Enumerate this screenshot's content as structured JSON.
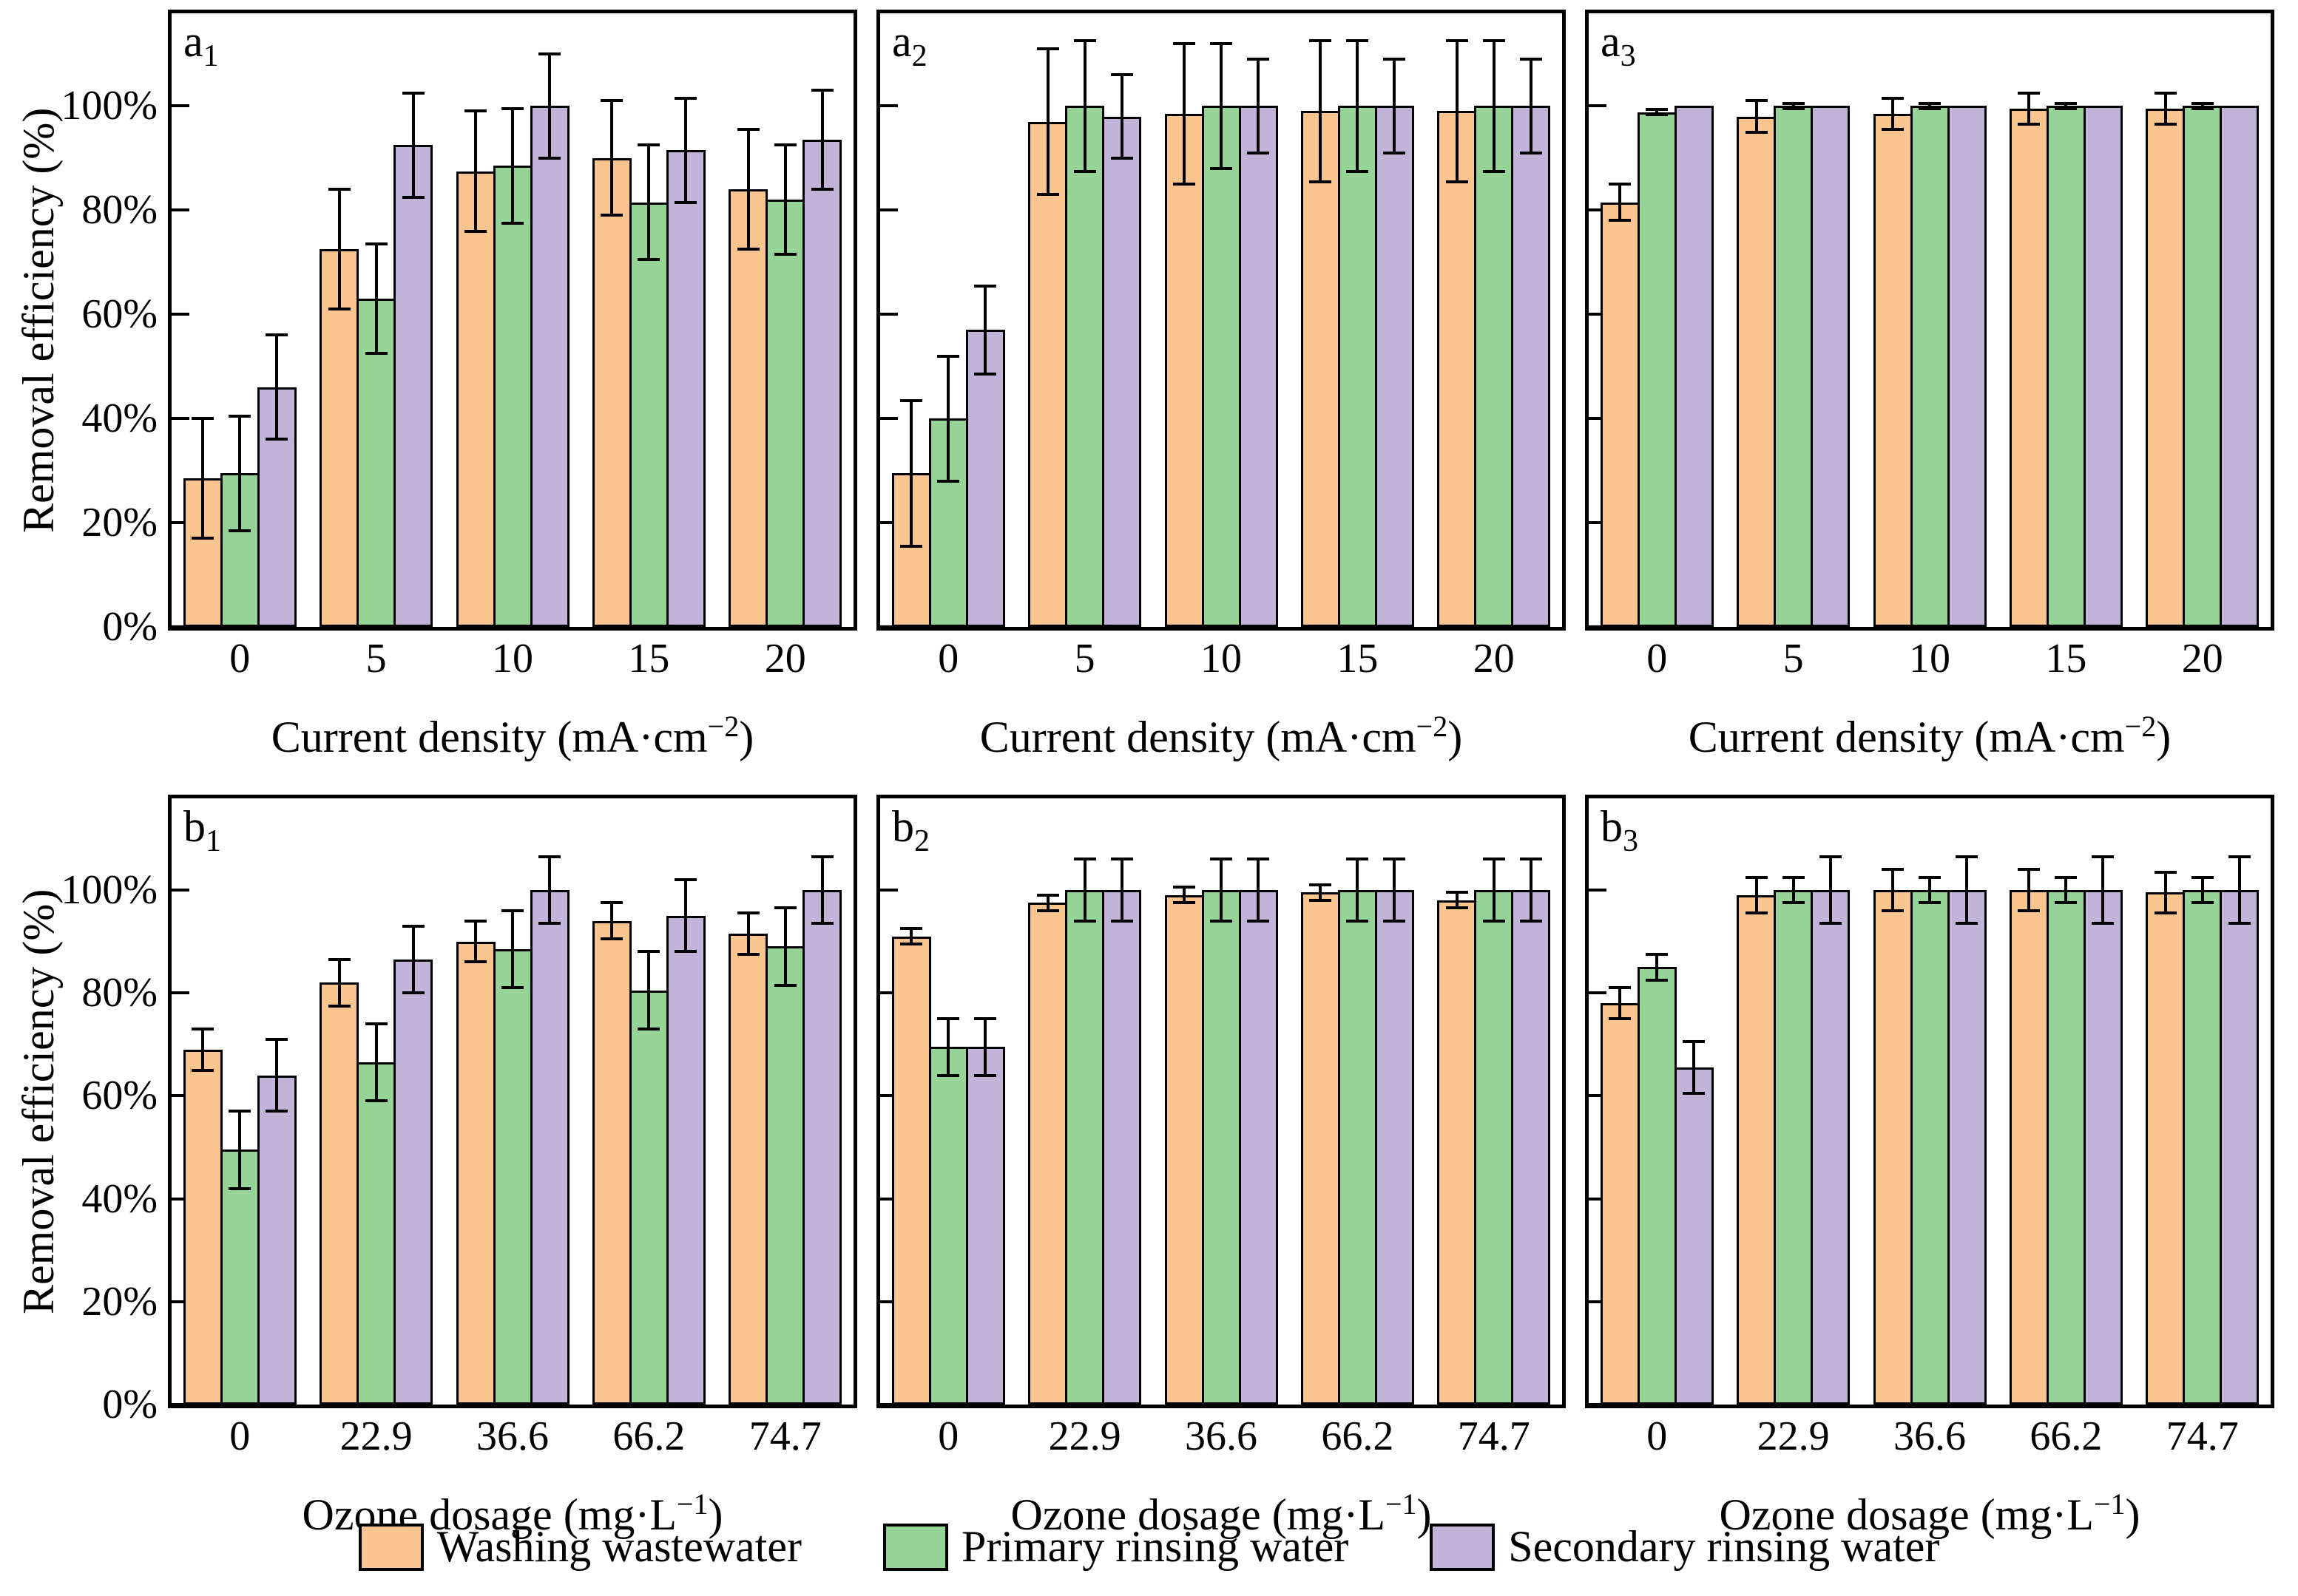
{
  "figure": {
    "ylabel": "Removal efficiency (%)",
    "y_axis": {
      "tick_labels": [
        "0%",
        "20%",
        "40%",
        "60%",
        "80%",
        "100%"
      ],
      "tick_values": [
        0,
        20,
        40,
        60,
        80,
        100
      ],
      "max_value": 117.8
    }
  },
  "colors": {
    "washing": "#FAC48E",
    "primary": "#96D396",
    "secondary": "#C2B4D8",
    "axis": "#000000"
  },
  "legend": {
    "items": [
      {
        "key": "washing",
        "label": "Washing wastewater",
        "color": "#FAC48E"
      },
      {
        "key": "primary",
        "label": "Primary rinsing water",
        "color": "#96D396"
      },
      {
        "key": "secondary",
        "label": "Secondary rinsing water",
        "color": "#C2B4D8"
      }
    ]
  },
  "chart_data": {
    "type": "bar",
    "grid": "off",
    "legend_position": "bottom",
    "ylim": [
      0,
      117.8
    ],
    "rows": [
      {
        "xlabel": {
          "pre": "Current density (mA·cm",
          "sup": "−2",
          "post": ")"
        },
        "categories": [
          "0",
          "5",
          "10",
          "15",
          "20"
        ],
        "panels": [
          {
            "label": "a",
            "sub": "1",
            "series": [
              {
                "name": "Washing wastewater",
                "key": "washing",
                "values": [
                  28.5,
                  72.5,
                  87.5,
                  90,
                  84
                ],
                "errors": [
                  11.5,
                  11.5,
                  11.5,
                  11,
                  11.5
                ]
              },
              {
                "name": "Primary rinsing water",
                "key": "primary",
                "values": [
                  29.5,
                  63,
                  88.5,
                  81.5,
                  82
                ],
                "errors": [
                  11,
                  10.5,
                  11,
                  11,
                  10.5
                ]
              },
              {
                "name": "Secondary rinsing water",
                "key": "secondary",
                "values": [
                  46,
                  92.5,
                  100,
                  91.5,
                  93.5
                ],
                "errors": [
                  10,
                  10,
                  10,
                  10,
                  9.5
                ]
              }
            ]
          },
          {
            "label": "a",
            "sub": "2",
            "series": [
              {
                "name": "Washing wastewater",
                "key": "washing",
                "values": [
                  29.5,
                  97,
                  98.5,
                  99,
                  99
                ],
                "errors": [
                  14,
                  14,
                  13.5,
                  13.5,
                  13.5
                ]
              },
              {
                "name": "Primary rinsing water",
                "key": "primary",
                "values": [
                  40,
                  100,
                  100,
                  100,
                  100
                ],
                "errors": [
                  12,
                  12.5,
                  12,
                  12.5,
                  12.5
                ]
              },
              {
                "name": "Secondary rinsing water",
                "key": "secondary",
                "values": [
                  57,
                  98,
                  100,
                  100,
                  100
                ],
                "errors": [
                  8.5,
                  8,
                  9,
                  9,
                  9
                ]
              }
            ]
          },
          {
            "label": "a",
            "sub": "3",
            "series": [
              {
                "name": "Washing wastewater",
                "key": "washing",
                "values": [
                  81.5,
                  98,
                  98.5,
                  99.5,
                  99.5
                ],
                "errors": [
                  3.5,
                  3,
                  3,
                  3,
                  3
                ]
              },
              {
                "name": "Primary rinsing water",
                "key": "primary",
                "values": [
                  98.8,
                  100,
                  100,
                  100,
                  100
                ],
                "errors": [
                  0.5,
                  0.5,
                  0.5,
                  0.5,
                  0.5
                ]
              },
              {
                "name": "Secondary rinsing water",
                "key": "secondary",
                "values": [
                  100,
                  100,
                  100,
                  100,
                  100
                ],
                "errors": [
                  0,
                  0,
                  0,
                  0,
                  0
                ]
              }
            ]
          }
        ]
      },
      {
        "xlabel": {
          "pre": "Ozone dosage (mg·L",
          "sup": "−1",
          "post": ")"
        },
        "categories": [
          "0",
          "22.9",
          "36.6",
          "66.2",
          "74.7"
        ],
        "panels": [
          {
            "label": "b",
            "sub": "1",
            "series": [
              {
                "name": "Washing wastewater",
                "key": "washing",
                "values": [
                  69,
                  82,
                  90,
                  94,
                  91.5
                ],
                "errors": [
                  4,
                  4.5,
                  4,
                  3.5,
                  4
                ]
              },
              {
                "name": "Primary rinsing water",
                "key": "primary",
                "values": [
                  49.5,
                  66.5,
                  88.5,
                  80.5,
                  89
                ],
                "errors": [
                  7.5,
                  7.5,
                  7.5,
                  7.5,
                  7.5
                ]
              },
              {
                "name": "Secondary rinsing water",
                "key": "secondary",
                "values": [
                  64,
                  86.5,
                  100,
                  95,
                  100
                ],
                "errors": [
                  7,
                  6.5,
                  6.5,
                  7,
                  6.5
                ]
              }
            ]
          },
          {
            "label": "b",
            "sub": "2",
            "series": [
              {
                "name": "Washing wastewater",
                "key": "washing",
                "values": [
                  91,
                  97.5,
                  99,
                  99.5,
                  98
                ],
                "errors": [
                  1.5,
                  1.5,
                  1.5,
                  1.5,
                  1.5
                ]
              },
              {
                "name": "Primary rinsing water",
                "key": "primary",
                "values": [
                  69.5,
                  100,
                  100,
                  100,
                  100
                ],
                "errors": [
                  5.5,
                  6,
                  6,
                  6,
                  6
                ]
              },
              {
                "name": "Secondary rinsing water",
                "key": "secondary",
                "values": [
                  69.5,
                  100,
                  100,
                  100,
                  100
                ],
                "errors": [
                  5.5,
                  6,
                  6,
                  6,
                  6
                ]
              }
            ]
          },
          {
            "label": "b",
            "sub": "3",
            "series": [
              {
                "name": "Washing wastewater",
                "key": "washing",
                "values": [
                  78,
                  99,
                  100,
                  100,
                  99.5
                ],
                "errors": [
                  3,
                  3.5,
                  4,
                  4,
                  4
                ]
              },
              {
                "name": "Primary rinsing water",
                "key": "primary",
                "values": [
                  85,
                  100,
                  100,
                  100,
                  100
                ],
                "errors": [
                  2.5,
                  2.5,
                  2.5,
                  2.5,
                  2.5
                ]
              },
              {
                "name": "Secondary rinsing water",
                "key": "secondary",
                "values": [
                  65.5,
                  100,
                  100,
                  100,
                  100
                ],
                "errors": [
                  5,
                  6.5,
                  6.5,
                  6.5,
                  6.5
                ]
              }
            ]
          }
        ]
      }
    ]
  }
}
